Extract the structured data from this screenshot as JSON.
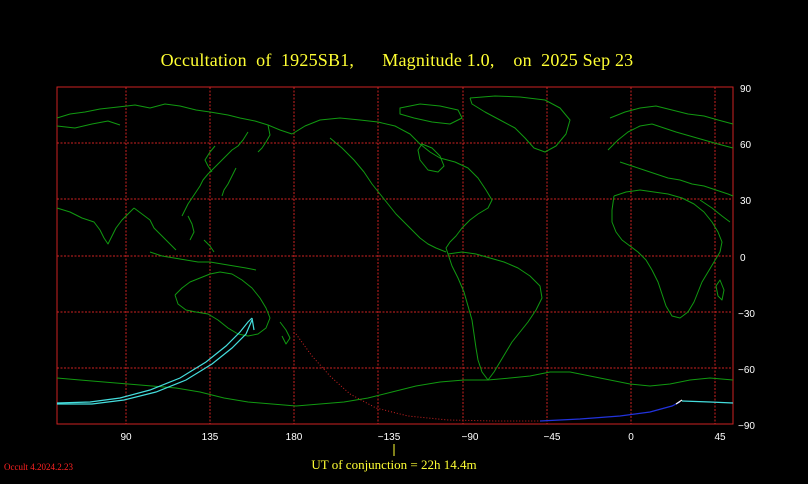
{
  "title": "Occultation  of  1925SB1,      Magnitude 1.0,    on  2025 Sep 23",
  "ut_conjunction": "UT of conjunction = 22h 14.4m",
  "footer": "Occult 4.2024.2.23",
  "axes": {
    "lon_labels": [
      "90",
      "135",
      "180",
      "−135",
      "−90",
      "−45",
      "0",
      "45"
    ],
    "lat_labels": [
      "90",
      "60",
      "30",
      "0",
      "−30",
      "−60",
      "−90"
    ]
  },
  "colors": {
    "background": "#000000",
    "grid": "#cc2222",
    "coastline": "#119911",
    "title": "#ffff33",
    "path_cyan": "#44dddd",
    "path_blue": "#2233dd",
    "path_dotted": "#cc2222",
    "footer": "#ff2222"
  }
}
